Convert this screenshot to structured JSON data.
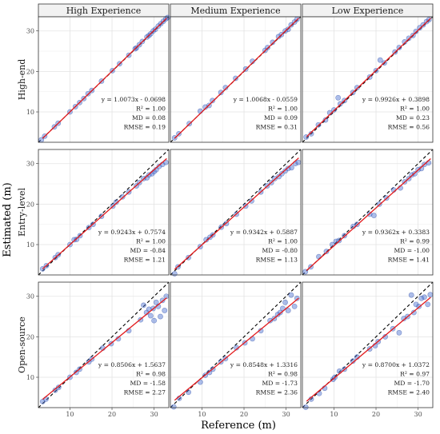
{
  "chart_data": {
    "type": "scatter",
    "xlabel": "Reference (m)",
    "ylabel": "Estimated (m)",
    "xlim": [
      2.5,
      33.5
    ],
    "ylim": [
      2.5,
      33.5
    ],
    "grid": true,
    "colors": {
      "point": "#4a6fd1",
      "regression": "#e31a1c",
      "identity": "#000000",
      "strip": "#f2f2f2",
      "panel_border": "#333333"
    },
    "columns": [
      "High Experience",
      "Medium Experience",
      "Low Experience"
    ],
    "rows": [
      "High-end",
      "Entry-level",
      "Open-source"
    ],
    "panels": [
      {
        "row": 0,
        "col": 0,
        "slope": 1.0073,
        "intercept": -0.0698,
        "stats": [
          "y = 1.0073x - 0.0698",
          "R² = 1.00",
          "MD = 0.08",
          "RMSE = 0.19"
        ],
        "points": [
          [
            3.2,
            3.1
          ],
          [
            4.0,
            4.0
          ],
          [
            6.3,
            6.3
          ],
          [
            7.2,
            7.2
          ],
          [
            10.0,
            10.0
          ],
          [
            11.3,
            11.3
          ],
          [
            12.3,
            12.3
          ],
          [
            13.3,
            13.3
          ],
          [
            14.3,
            14.5
          ],
          [
            15.2,
            15.3
          ],
          [
            17.5,
            17.6
          ],
          [
            20.1,
            20.2
          ],
          [
            21.8,
            21.9
          ],
          [
            24.0,
            24.0
          ],
          [
            25.5,
            25.6
          ],
          [
            25.8,
            25.8
          ],
          [
            26.5,
            26.6
          ],
          [
            27.2,
            27.4
          ],
          [
            28.3,
            28.5
          ],
          [
            28.8,
            28.9
          ],
          [
            29.2,
            29.3
          ],
          [
            29.8,
            30.0
          ],
          [
            30.3,
            30.4
          ],
          [
            31.0,
            31.2
          ],
          [
            31.6,
            31.8
          ],
          [
            32.2,
            32.4
          ],
          [
            32.8,
            33.0
          ],
          [
            33.2,
            33.3
          ]
        ]
      },
      {
        "row": 0,
        "col": 1,
        "slope": 1.0068,
        "intercept": -0.0559,
        "stats": [
          "y = 1.0068x - 0.0559",
          "R² = 1.00",
          "MD = 0.09",
          "RMSE = 0.31"
        ],
        "points": [
          [
            3.5,
            3.6
          ],
          [
            4.5,
            4.6
          ],
          [
            7.0,
            7.1
          ],
          [
            9.6,
            10.2
          ],
          [
            10.8,
            11.2
          ],
          [
            11.7,
            11.6
          ],
          [
            12.5,
            12.8
          ],
          [
            14.5,
            14.8
          ],
          [
            15.6,
            16.0
          ],
          [
            18.0,
            18.3
          ],
          [
            20.4,
            20.6
          ],
          [
            22.0,
            22.5
          ],
          [
            25.0,
            25.2
          ],
          [
            25.6,
            25.9
          ],
          [
            26.8,
            27.2
          ],
          [
            28.2,
            28.6
          ],
          [
            28.9,
            29.1
          ],
          [
            29.8,
            30.0
          ],
          [
            30.5,
            30.4
          ],
          [
            31.2,
            31.5
          ],
          [
            32.0,
            32.2
          ],
          [
            32.6,
            32.9
          ]
        ]
      },
      {
        "row": 0,
        "col": 2,
        "slope": 0.9926,
        "intercept": 0.3898,
        "stats": [
          "y = 0.9926x + 0.3898",
          "R² = 1.00",
          "MD = 0.23",
          "RMSE = 0.56"
        ],
        "points": [
          [
            3.4,
            3.8
          ],
          [
            4.6,
            4.6
          ],
          [
            6.3,
            6.8
          ],
          [
            8.0,
            8.0
          ],
          [
            9.0,
            9.8
          ],
          [
            10.0,
            10.5
          ],
          [
            11.0,
            13.5
          ],
          [
            11.5,
            12.0
          ],
          [
            12.5,
            12.8
          ],
          [
            14.5,
            14.8
          ],
          [
            15.5,
            16.0
          ],
          [
            18.5,
            18.6
          ],
          [
            20.0,
            20.2
          ],
          [
            21.0,
            22.8
          ],
          [
            22.0,
            22.1
          ],
          [
            24.5,
            24.8
          ],
          [
            25.5,
            25.9
          ],
          [
            26.8,
            27.3
          ],
          [
            27.8,
            28.2
          ],
          [
            28.8,
            28.9
          ],
          [
            29.5,
            29.9
          ],
          [
            30.4,
            30.8
          ],
          [
            31.2,
            31.5
          ],
          [
            32.0,
            32.3
          ],
          [
            32.6,
            32.8
          ]
        ]
      },
      {
        "row": 1,
        "col": 0,
        "slope": 0.9243,
        "intercept": 0.7574,
        "stats": [
          "y = 0.9243x + 0.7574",
          "R² = 1.00",
          "MD = -0.84",
          "RMSE = 1.21"
        ],
        "points": [
          [
            3.5,
            4.0
          ],
          [
            4.4,
            4.8
          ],
          [
            6.5,
            6.8
          ],
          [
            7.2,
            7.5
          ],
          [
            10.0,
            10.0
          ],
          [
            11.0,
            11.2
          ],
          [
            11.6,
            11.3
          ],
          [
            12.4,
            12.2
          ],
          [
            14.5,
            14.2
          ],
          [
            15.5,
            15.0
          ],
          [
            17.5,
            17.0
          ],
          [
            20.2,
            19.5
          ],
          [
            21.0,
            20.5
          ],
          [
            22.5,
            21.8
          ],
          [
            24.0,
            23.0
          ],
          [
            25.8,
            24.5
          ],
          [
            26.5,
            25.3
          ],
          [
            27.5,
            26.3
          ],
          [
            28.3,
            26.5
          ],
          [
            28.8,
            27.2
          ],
          [
            29.5,
            27.5
          ],
          [
            30.0,
            28.0
          ],
          [
            30.5,
            28.5
          ],
          [
            31.2,
            29.3
          ],
          [
            32.0,
            29.8
          ],
          [
            32.8,
            30.3
          ]
        ]
      },
      {
        "row": 1,
        "col": 1,
        "slope": 0.9342,
        "intercept": 0.5887,
        "stats": [
          "y = 0.9342x + 0.5887",
          "R² = 1.00",
          "MD = -0.80",
          "RMSE = 1.13"
        ],
        "points": [
          [
            3.5,
            2.8
          ],
          [
            4.3,
            4.5
          ],
          [
            6.8,
            6.8
          ],
          [
            9.6,
            9.5
          ],
          [
            11.0,
            11.2
          ],
          [
            11.9,
            11.8
          ],
          [
            12.6,
            12.4
          ],
          [
            14.6,
            14.3
          ],
          [
            15.8,
            15.2
          ],
          [
            18.2,
            17.5
          ],
          [
            20.4,
            19.5
          ],
          [
            21.8,
            20.8
          ],
          [
            24.0,
            23.0
          ],
          [
            25.5,
            24.5
          ],
          [
            26.5,
            25.3
          ],
          [
            27.3,
            26.3
          ],
          [
            28.3,
            26.8
          ],
          [
            29.0,
            27.5
          ],
          [
            29.8,
            28.2
          ],
          [
            30.5,
            28.8
          ],
          [
            31.3,
            29.0
          ],
          [
            32.2,
            30.0
          ],
          [
            32.9,
            30.3
          ]
        ]
      },
      {
        "row": 1,
        "col": 2,
        "slope": 0.9362,
        "intercept": 0.3383,
        "stats": [
          "y = 0.9362x + 0.3383",
          "R² = 0.99",
          "MD = -1.00",
          "RMSE = 1.41"
        ],
        "points": [
          [
            3.2,
            3.3
          ],
          [
            4.5,
            4.5
          ],
          [
            6.4,
            7.0
          ],
          [
            8.2,
            8.3
          ],
          [
            9.6,
            10.0
          ],
          [
            10.5,
            10.8
          ],
          [
            11.2,
            11.0
          ],
          [
            12.5,
            12.2
          ],
          [
            14.6,
            14.5
          ],
          [
            15.5,
            15.0
          ],
          [
            18.5,
            17.5
          ],
          [
            19.5,
            17.2
          ],
          [
            20.8,
            20.0
          ],
          [
            22.5,
            21.5
          ],
          [
            24.2,
            23.5
          ],
          [
            25.8,
            24.0
          ],
          [
            26.8,
            25.5
          ],
          [
            27.8,
            26.3
          ],
          [
            28.5,
            27.2
          ],
          [
            29.2,
            27.5
          ],
          [
            30.0,
            28.5
          ],
          [
            30.8,
            28.8
          ],
          [
            31.5,
            29.8
          ],
          [
            32.5,
            30.2
          ]
        ]
      },
      {
        "row": 2,
        "col": 0,
        "slope": 0.8506,
        "intercept": 1.5637,
        "stats": [
          "y = 0.8506x + 1.5637",
          "R² = 0.98",
          "MD = -1.58",
          "RMSE = 2.27"
        ],
        "points": [
          [
            3.5,
            4.0
          ],
          [
            4.3,
            4.6
          ],
          [
            6.5,
            6.8
          ],
          [
            7.3,
            7.5
          ],
          [
            10.0,
            10.0
          ],
          [
            11.5,
            11.2
          ],
          [
            12.3,
            12.0
          ],
          [
            14.5,
            13.8
          ],
          [
            15.2,
            14.5
          ],
          [
            17.8,
            17.2
          ],
          [
            19.8,
            18.3
          ],
          [
            21.5,
            19.5
          ],
          [
            24.0,
            21.5
          ],
          [
            26.8,
            24.2
          ],
          [
            27.5,
            27.8
          ],
          [
            28.2,
            26.0
          ],
          [
            28.8,
            26.8
          ],
          [
            29.2,
            25.2
          ],
          [
            29.8,
            27.0
          ],
          [
            30.0,
            24.0
          ],
          [
            30.5,
            28.5
          ],
          [
            31.0,
            27.5
          ],
          [
            31.5,
            25.0
          ],
          [
            32.0,
            29.0
          ],
          [
            32.5,
            26.5
          ],
          [
            32.9,
            30.0
          ]
        ]
      },
      {
        "row": 2,
        "col": 1,
        "slope": 0.8548,
        "intercept": 1.3316,
        "stats": [
          "y = 0.8548x + 1.3316",
          "R² = 0.98",
          "MD = -1.73",
          "RMSE = 2.36"
        ],
        "points": [
          [
            3.3,
            2.7
          ],
          [
            4.6,
            4.8
          ],
          [
            6.8,
            6.3
          ],
          [
            9.6,
            8.8
          ],
          [
            10.8,
            10.5
          ],
          [
            11.8,
            11.2
          ],
          [
            12.6,
            12.0
          ],
          [
            14.5,
            13.8
          ],
          [
            15.6,
            14.6
          ],
          [
            18.2,
            17.3
          ],
          [
            20.2,
            18.5
          ],
          [
            22.0,
            19.5
          ],
          [
            24.0,
            21.5
          ],
          [
            26.2,
            24.0
          ],
          [
            27.2,
            24.5
          ],
          [
            28.0,
            25.5
          ],
          [
            28.6,
            26.0
          ],
          [
            29.2,
            27.0
          ],
          [
            29.8,
            28.5
          ],
          [
            30.5,
            26.5
          ],
          [
            31.2,
            30.3
          ],
          [
            32.0,
            27.5
          ],
          [
            32.6,
            29.5
          ]
        ]
      },
      {
        "row": 2,
        "col": 2,
        "slope": 0.87,
        "intercept": 1.0372,
        "stats": [
          "y = 0.8700x + 1.0372",
          "R² = 0.97",
          "MD = -1.70",
          "RMSE = 2.40"
        ],
        "points": [
          [
            3.3,
            2.6
          ],
          [
            4.6,
            4.6
          ],
          [
            6.5,
            6.0
          ],
          [
            7.8,
            7.3
          ],
          [
            9.8,
            9.5
          ],
          [
            10.2,
            10.0
          ],
          [
            11.3,
            11.5
          ],
          [
            12.5,
            12.0
          ],
          [
            14.5,
            14.0
          ],
          [
            15.5,
            15.0
          ],
          [
            18.5,
            17.0
          ],
          [
            19.8,
            17.8
          ],
          [
            20.5,
            18.8
          ],
          [
            22.2,
            20.0
          ],
          [
            24.0,
            22.0
          ],
          [
            25.5,
            21.0
          ],
          [
            26.6,
            24.5
          ],
          [
            27.5,
            25.0
          ],
          [
            28.4,
            30.3
          ],
          [
            29.0,
            26.0
          ],
          [
            29.5,
            28.0
          ],
          [
            30.2,
            27.5
          ],
          [
            30.8,
            29.5
          ],
          [
            31.5,
            29.8
          ],
          [
            32.3,
            28.0
          ],
          [
            32.9,
            30.4
          ]
        ]
      }
    ]
  }
}
